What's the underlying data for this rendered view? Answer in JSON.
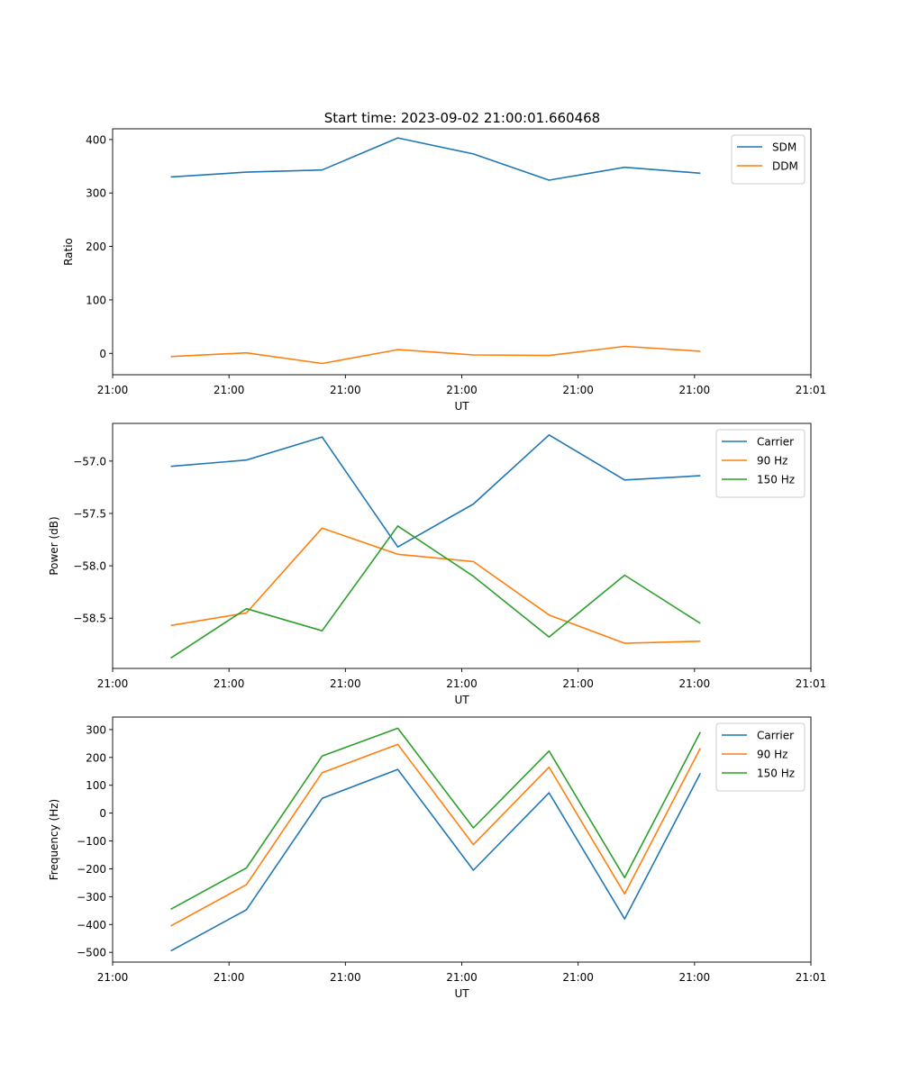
{
  "figure_title": "Start time: 2023-09-02 21:00:01.660468",
  "colors": {
    "blue": "#1f77b4",
    "orange": "#ff7f0e",
    "green": "#2ca02c"
  },
  "chart_data": [
    {
      "type": "line",
      "xlabel": "UT",
      "ylabel": "Ratio",
      "xlim": [
        0,
        12
      ],
      "x_ticks": [
        {
          "value": 0,
          "label": "21:00"
        },
        {
          "value": 2,
          "label": "21:00"
        },
        {
          "value": 4,
          "label": "21:00"
        },
        {
          "value": 6,
          "label": "21:00"
        },
        {
          "value": 8,
          "label": "21:00"
        },
        {
          "value": 10,
          "label": "21:00"
        },
        {
          "value": 12,
          "label": "21:01"
        }
      ],
      "ylim": [
        -40,
        420
      ],
      "y_ticks": [
        {
          "value": 0,
          "label": "0"
        },
        {
          "value": 100,
          "label": "100"
        },
        {
          "value": 200,
          "label": "200"
        },
        {
          "value": 300,
          "label": "300"
        },
        {
          "value": 400,
          "label": "400"
        }
      ],
      "x": [
        1.0,
        2.3,
        3.6,
        4.9,
        6.2,
        7.5,
        8.8,
        10.1
      ],
      "series": [
        {
          "name": "SDM",
          "color": "#1f77b4",
          "values": [
            330,
            339,
            343,
            403,
            373,
            324,
            348,
            337
          ]
        },
        {
          "name": "DDM",
          "color": "#ff7f0e",
          "values": [
            -6,
            1,
            -19,
            7,
            -3,
            -4,
            13,
            4
          ]
        }
      ],
      "legend": "top-right"
    },
    {
      "type": "line",
      "xlabel": "UT",
      "ylabel": "Power (dB)",
      "xlim": [
        0,
        12
      ],
      "x_ticks": [
        {
          "value": 0,
          "label": "21:00"
        },
        {
          "value": 2,
          "label": "21:00"
        },
        {
          "value": 4,
          "label": "21:00"
        },
        {
          "value": 6,
          "label": "21:00"
        },
        {
          "value": 8,
          "label": "21:00"
        },
        {
          "value": 10,
          "label": "21:00"
        },
        {
          "value": 12,
          "label": "21:01"
        }
      ],
      "ylim": [
        -58.98,
        -56.64
      ],
      "y_ticks": [
        {
          "value": -58.5,
          "label": "−58.5"
        },
        {
          "value": -58.0,
          "label": "−58.0"
        },
        {
          "value": -57.5,
          "label": "−57.5"
        },
        {
          "value": -57.0,
          "label": "−57.0"
        }
      ],
      "x": [
        1.0,
        2.3,
        3.6,
        4.9,
        6.2,
        7.5,
        8.8,
        10.1
      ],
      "series": [
        {
          "name": "Carrier",
          "color": "#1f77b4",
          "values": [
            -57.05,
            -56.99,
            -56.77,
            -57.82,
            -57.41,
            -56.75,
            -57.18,
            -57.14
          ]
        },
        {
          "name": "90 Hz",
          "color": "#ff7f0e",
          "values": [
            -58.57,
            -58.45,
            -57.64,
            -57.89,
            -57.96,
            -58.47,
            -58.74,
            -58.72
          ]
        },
        {
          "name": "150 Hz",
          "color": "#2ca02c",
          "values": [
            -58.88,
            -58.41,
            -58.62,
            -57.62,
            -58.1,
            -58.68,
            -58.09,
            -58.55
          ]
        }
      ],
      "legend": "top-right"
    },
    {
      "type": "line",
      "xlabel": "UT",
      "ylabel": "Frequency (Hz)",
      "xlim": [
        0,
        12
      ],
      "x_ticks": [
        {
          "value": 0,
          "label": "21:00"
        },
        {
          "value": 2,
          "label": "21:00"
        },
        {
          "value": 4,
          "label": "21:00"
        },
        {
          "value": 6,
          "label": "21:00"
        },
        {
          "value": 8,
          "label": "21:00"
        },
        {
          "value": 10,
          "label": "21:00"
        },
        {
          "value": 12,
          "label": "21:01"
        }
      ],
      "ylim": [
        -535,
        345
      ],
      "y_ticks": [
        {
          "value": -500,
          "label": "−500"
        },
        {
          "value": -400,
          "label": "−400"
        },
        {
          "value": -300,
          "label": "−300"
        },
        {
          "value": -200,
          "label": "−200"
        },
        {
          "value": -100,
          "label": "−100"
        },
        {
          "value": 0,
          "label": "0"
        },
        {
          "value": 100,
          "label": "100"
        },
        {
          "value": 200,
          "label": "200"
        },
        {
          "value": 300,
          "label": "300"
        }
      ],
      "x": [
        1.0,
        2.3,
        3.6,
        4.9,
        6.2,
        7.5,
        8.8,
        10.1
      ],
      "series": [
        {
          "name": "Carrier",
          "color": "#1f77b4",
          "values": [
            -495,
            -347,
            53,
            157,
            -205,
            73,
            -380,
            143
          ]
        },
        {
          "name": "90 Hz",
          "color": "#ff7f0e",
          "values": [
            -405,
            -257,
            145,
            247,
            -113,
            165,
            -290,
            233
          ]
        },
        {
          "name": "150 Hz",
          "color": "#2ca02c",
          "values": [
            -345,
            -197,
            205,
            305,
            -53,
            223,
            -232,
            291
          ]
        }
      ],
      "legend": "top-right"
    }
  ]
}
